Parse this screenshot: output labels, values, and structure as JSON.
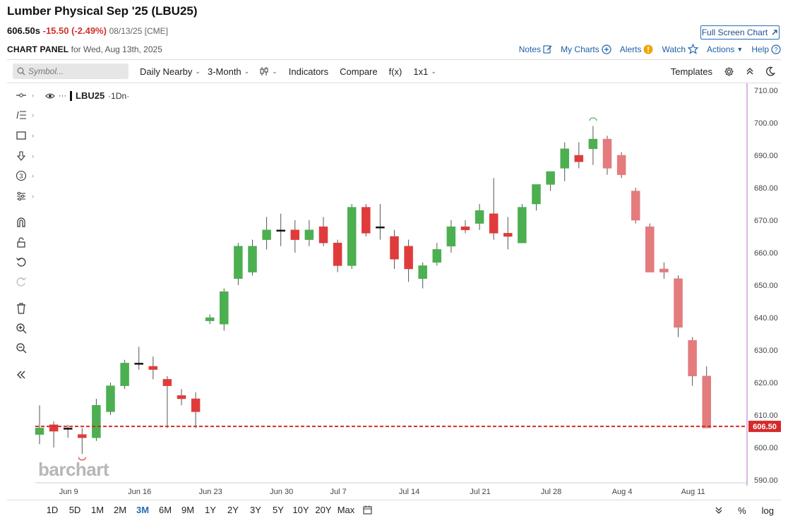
{
  "header": {
    "title": "Lumber Physical Sep '25 (LBU25)",
    "price": "606.50s",
    "change": "-15.50 (-2.49%)",
    "quote_date": "08/13/25 [CME]",
    "panel_label": "CHART PANEL",
    "panel_date": "for Wed, Aug 13th, 2025",
    "fullscreen_label": "Full Screen Chart"
  },
  "topnav": {
    "notes": "Notes",
    "mycharts": "My Charts",
    "alerts": "Alerts",
    "watch": "Watch",
    "actions": "Actions",
    "help": "Help"
  },
  "toolbar": {
    "symbol_placeholder": "Symbol...",
    "interval": "Daily Nearby",
    "period": "3-Month",
    "indicators": "Indicators",
    "compare": "Compare",
    "fx": "f(x)",
    "layout": "1x1",
    "templates": "Templates"
  },
  "legend": {
    "symbol": "LBU25",
    "timeframe": "·1Dn·"
  },
  "watermark": "barchart",
  "ranges": [
    "1D",
    "5D",
    "1M",
    "2M",
    "3M",
    "6M",
    "9M",
    "1Y",
    "2Y",
    "3Y",
    "5Y",
    "10Y",
    "20Y",
    "Max"
  ],
  "active_range": "3M",
  "bottom_right": {
    "percent": "%",
    "log": "log"
  },
  "colors": {
    "up": "#4caf50",
    "down": "#e03b3b",
    "highlight": "#f2c4c6",
    "accent": "#2b6cb0",
    "axis": "#b36bc9"
  },
  "chart_data": {
    "type": "candlestick",
    "y_ticks": [
      "710.00",
      "700.00",
      "690.00",
      "680.00",
      "670.00",
      "660.00",
      "650.00",
      "640.00",
      "630.00",
      "620.00",
      "610.00",
      "600.00",
      "590.00"
    ],
    "ylim": [
      590,
      710
    ],
    "x_ticks": [
      "Jun 9",
      "Jun 16",
      "Jun 23",
      "Jun 30",
      "Jul 7",
      "Jul 14",
      "Jul 21",
      "Jul 28",
      "Aug 4",
      "Aug 11"
    ],
    "last_price_label": "606.50",
    "last_price": 606.5,
    "highlight_zone": {
      "from_date": "Aug 1",
      "to_date": "Aug 13",
      "low": 604,
      "high": 696
    },
    "candles": [
      {
        "date": "Jun 5",
        "o": 604,
        "h": 613,
        "l": 601,
        "c": 606
      },
      {
        "date": "Jun 6",
        "o": 607,
        "h": 608,
        "l": 600,
        "c": 605
      },
      {
        "date": "Jun 9",
        "o": 606,
        "h": 607,
        "l": 603,
        "c": 606
      },
      {
        "date": "Jun 10",
        "o": 604,
        "h": 606,
        "l": 598,
        "c": 603
      },
      {
        "date": "Jun 11",
        "o": 603,
        "h": 615,
        "l": 602,
        "c": 613
      },
      {
        "date": "Jun 12",
        "o": 611,
        "h": 620,
        "l": 610,
        "c": 619
      },
      {
        "date": "Jun 13",
        "o": 619,
        "h": 627,
        "l": 618,
        "c": 626
      },
      {
        "date": "Jun 16",
        "o": 626,
        "h": 631,
        "l": 624,
        "c": 626
      },
      {
        "date": "Jun 17",
        "o": 625,
        "h": 628,
        "l": 621,
        "c": 624
      },
      {
        "date": "Jun 18",
        "o": 621,
        "h": 622,
        "l": 606,
        "c": 619
      },
      {
        "date": "Jun 19",
        "o": 616,
        "h": 618,
        "l": 613,
        "c": 615
      },
      {
        "date": "Jun 20",
        "o": 615,
        "h": 617,
        "l": 606,
        "c": 611
      },
      {
        "date": "Jun 23",
        "o": 639,
        "h": 641,
        "l": 638,
        "c": 640
      },
      {
        "date": "Jun 24",
        "o": 638,
        "h": 649,
        "l": 636,
        "c": 648
      },
      {
        "date": "Jun 25",
        "o": 652,
        "h": 663,
        "l": 650,
        "c": 662
      },
      {
        "date": "Jun 26",
        "o": 654,
        "h": 664,
        "l": 653,
        "c": 662
      },
      {
        "date": "Jun 27",
        "o": 664,
        "h": 671,
        "l": 661,
        "c": 667
      },
      {
        "date": "Jun 30",
        "o": 667,
        "h": 672,
        "l": 662,
        "c": 667
      },
      {
        "date": "Jul 1",
        "o": 667,
        "h": 670,
        "l": 660,
        "c": 664
      },
      {
        "date": "Jul 2",
        "o": 664,
        "h": 670,
        "l": 662,
        "c": 667
      },
      {
        "date": "Jul 3",
        "o": 668,
        "h": 671,
        "l": 662,
        "c": 663
      },
      {
        "date": "Jul 7",
        "o": 663,
        "h": 664,
        "l": 654,
        "c": 656
      },
      {
        "date": "Jul 8",
        "o": 656,
        "h": 675,
        "l": 655,
        "c": 674
      },
      {
        "date": "Jul 9",
        "o": 674,
        "h": 675,
        "l": 665,
        "c": 666
      },
      {
        "date": "Jul 10",
        "o": 668,
        "h": 675,
        "l": 664,
        "c": 668
      },
      {
        "date": "Jul 11",
        "o": 665,
        "h": 667,
        "l": 655,
        "c": 658
      },
      {
        "date": "Jul 14",
        "o": 662,
        "h": 664,
        "l": 651,
        "c": 655
      },
      {
        "date": "Jul 15",
        "o": 652,
        "h": 657,
        "l": 649,
        "c": 656
      },
      {
        "date": "Jul 16",
        "o": 657,
        "h": 663,
        "l": 656,
        "c": 661
      },
      {
        "date": "Jul 17",
        "o": 662,
        "h": 670,
        "l": 660,
        "c": 668
      },
      {
        "date": "Jul 18",
        "o": 668,
        "h": 670,
        "l": 666,
        "c": 667
      },
      {
        "date": "Jul 21",
        "o": 669,
        "h": 675,
        "l": 667,
        "c": 673
      },
      {
        "date": "Jul 22",
        "o": 672,
        "h": 683,
        "l": 664,
        "c": 666
      },
      {
        "date": "Jul 23",
        "o": 666,
        "h": 671,
        "l": 661,
        "c": 665
      },
      {
        "date": "Jul 24",
        "o": 663,
        "h": 675,
        "l": 663,
        "c": 674
      },
      {
        "date": "Jul 25",
        "o": 675,
        "h": 681,
        "l": 673,
        "c": 681
      },
      {
        "date": "Jul 28",
        "o": 681,
        "h": 685,
        "l": 679,
        "c": 685
      },
      {
        "date": "Jul 29",
        "o": 686,
        "h": 694,
        "l": 682,
        "c": 692
      },
      {
        "date": "Jul 30",
        "o": 690,
        "h": 694,
        "l": 686,
        "c": 688
      },
      {
        "date": "Jul 31",
        "o": 692,
        "h": 699,
        "l": 687,
        "c": 695
      },
      {
        "date": "Aug 1",
        "o": 695,
        "h": 696,
        "l": 684,
        "c": 686
      },
      {
        "date": "Aug 4",
        "o": 690,
        "h": 691,
        "l": 683,
        "c": 684
      },
      {
        "date": "Aug 5",
        "o": 679,
        "h": 680,
        "l": 669,
        "c": 670
      },
      {
        "date": "Aug 6",
        "o": 668,
        "h": 669,
        "l": 654,
        "c": 654
      },
      {
        "date": "Aug 7",
        "o": 655,
        "h": 657,
        "l": 652,
        "c": 654
      },
      {
        "date": "Aug 8",
        "o": 652,
        "h": 653,
        "l": 634,
        "c": 637
      },
      {
        "date": "Aug 11",
        "o": 633,
        "h": 634,
        "l": 619,
        "c": 622
      },
      {
        "date": "Aug 12",
        "o": 622,
        "h": 625,
        "l": 606,
        "c": 606
      }
    ]
  }
}
